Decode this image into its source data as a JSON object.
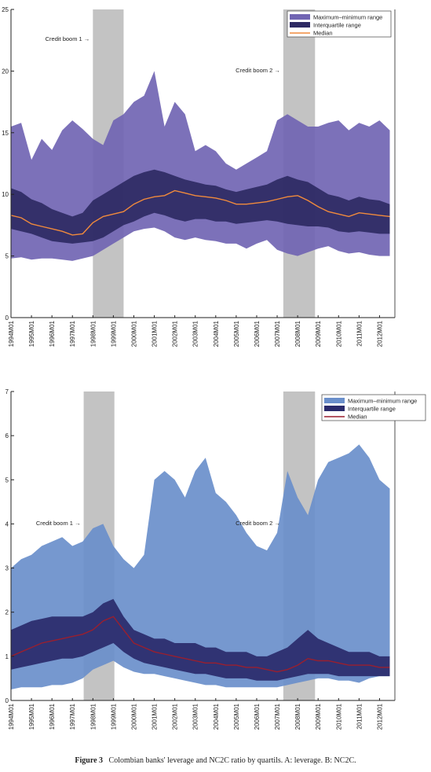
{
  "chart_data": [
    {
      "panel": "A",
      "type": "area",
      "ylim": [
        0,
        25
      ],
      "yticks": [
        0,
        5,
        10,
        15,
        20,
        25
      ],
      "xticks": [
        "1994M01",
        "1995M01",
        "1996M01",
        "1997M01",
        "1998M01",
        "1999M01",
        "2000M01",
        "2001M01",
        "2002M01",
        "2003M01",
        "2004M01",
        "2005M01",
        "2006M01",
        "2007M01",
        "2008M01",
        "2009M01",
        "2010M01",
        "2011M01",
        "2012M01"
      ],
      "shaded": [
        {
          "label": "Credit boom 1 →",
          "from": 1998.0,
          "to": 1999.5
        },
        {
          "label": "Credit boom 2 →",
          "from": 2007.3,
          "to": 2008.85
        }
      ],
      "colors": {
        "range": "#7165b3",
        "iqr": "#2e2a63",
        "median": "#f08a3c",
        "shade": "#c3c3c3"
      },
      "legend": [
        "Maximum–minimum range",
        "Interquartile range",
        "Median"
      ],
      "x": [
        1994.0,
        1994.5,
        1995.0,
        1995.5,
        1996.0,
        1996.5,
        1997.0,
        1997.5,
        1998.0,
        1998.5,
        1999.0,
        1999.5,
        2000.0,
        2000.5,
        2001.0,
        2001.5,
        2002.0,
        2002.5,
        2003.0,
        2003.5,
        2004.0,
        2004.5,
        2005.0,
        2005.5,
        2006.0,
        2006.5,
        2007.0,
        2007.5,
        2008.0,
        2008.5,
        2009.0,
        2009.5,
        2010.0,
        2010.5,
        2011.0,
        2011.5,
        2012.0,
        2012.5
      ],
      "series": [
        {
          "name": "Maximum–minimum range",
          "role": "max",
          "values": [
            15.5,
            15.8,
            12.8,
            14.5,
            13.6,
            15.2,
            16.0,
            15.3,
            14.5,
            14.0,
            16.0,
            16.5,
            17.5,
            18.0,
            20.0,
            15.5,
            17.5,
            16.5,
            13.5,
            14.0,
            13.5,
            12.5,
            12.0,
            12.5,
            13.0,
            13.5,
            16.0,
            16.5,
            16.0,
            15.5,
            15.5,
            15.8,
            16.0,
            15.2,
            15.8,
            15.5,
            16.0,
            15.2
          ]
        },
        {
          "name": "Maximum–minimum range",
          "role": "min",
          "values": [
            4.8,
            4.9,
            4.7,
            4.8,
            4.8,
            4.7,
            4.6,
            4.8,
            5.0,
            5.5,
            6.0,
            6.5,
            7.0,
            7.2,
            7.3,
            7.0,
            6.5,
            6.3,
            6.5,
            6.3,
            6.2,
            6.0,
            6.0,
            5.6,
            6.0,
            6.3,
            5.5,
            5.2,
            5.0,
            5.3,
            5.6,
            5.8,
            5.4,
            5.2,
            5.3,
            5.1,
            5.0,
            5.0
          ]
        },
        {
          "name": "Interquartile range",
          "role": "q3",
          "values": [
            10.5,
            10.2,
            9.6,
            9.3,
            8.8,
            8.5,
            8.2,
            8.5,
            9.5,
            10.0,
            10.5,
            11.0,
            11.5,
            11.8,
            12.0,
            11.8,
            11.5,
            11.2,
            11.0,
            10.8,
            10.7,
            10.4,
            10.2,
            10.4,
            10.6,
            10.8,
            11.2,
            11.5,
            11.2,
            11.0,
            10.5,
            10.0,
            9.8,
            9.5,
            9.8,
            9.6,
            9.5,
            9.2
          ]
        },
        {
          "name": "Interquartile range",
          "role": "q1",
          "values": [
            7.2,
            7.0,
            6.8,
            6.5,
            6.2,
            6.1,
            6.0,
            6.1,
            6.2,
            6.5,
            7.0,
            7.5,
            7.8,
            8.2,
            8.5,
            8.3,
            8.0,
            7.8,
            8.0,
            8.0,
            7.8,
            7.8,
            7.6,
            7.7,
            7.8,
            7.9,
            7.8,
            7.6,
            7.5,
            7.4,
            7.4,
            7.3,
            7.0,
            6.9,
            7.0,
            6.9,
            6.8,
            6.8
          ]
        },
        {
          "name": "Median",
          "role": "median",
          "values": [
            8.3,
            8.1,
            7.6,
            7.4,
            7.2,
            7.0,
            6.7,
            6.8,
            7.7,
            8.2,
            8.4,
            8.6,
            9.2,
            9.6,
            9.8,
            9.9,
            10.3,
            10.1,
            9.9,
            9.8,
            9.7,
            9.5,
            9.2,
            9.2,
            9.3,
            9.4,
            9.6,
            9.8,
            9.9,
            9.5,
            9.0,
            8.6,
            8.4,
            8.2,
            8.5,
            8.4,
            8.3,
            8.2
          ]
        }
      ]
    },
    {
      "panel": "B",
      "type": "area",
      "ylim": [
        0,
        7
      ],
      "yticks": [
        0,
        1,
        2,
        3,
        4,
        5,
        6,
        7
      ],
      "xticks": [
        "1994M01",
        "1995M01",
        "1996M01",
        "1997M01",
        "1998M01",
        "1999M01",
        "2000M01",
        "2001M01",
        "2002M01",
        "2003M01",
        "2004M01",
        "2005M01",
        "2006M01",
        "2007M01",
        "2008M01",
        "2009M01",
        "2010M01",
        "2011M01",
        "2012M01"
      ],
      "shaded": [
        {
          "label": "Credit boom 1 →",
          "from": 1997.55,
          "to": 1999.05
        },
        {
          "label": "Credit boom 2 →",
          "from": 2007.3,
          "to": 2008.85
        }
      ],
      "colors": {
        "range": "#6a8fcb",
        "iqr": "#2a2a6b",
        "median": "#9a1f2e",
        "shade": "#c3c3c3"
      },
      "legend": [
        "Maximum–minimum range",
        "Interquartile range",
        "Median"
      ],
      "x": [
        1994.0,
        1994.5,
        1995.0,
        1995.5,
        1996.0,
        1996.5,
        1997.0,
        1997.5,
        1998.0,
        1998.5,
        1999.0,
        1999.5,
        2000.0,
        2000.5,
        2001.0,
        2001.5,
        2002.0,
        2002.5,
        2003.0,
        2003.5,
        2004.0,
        2004.5,
        2005.0,
        2005.5,
        2006.0,
        2006.5,
        2007.0,
        2007.5,
        2008.0,
        2008.5,
        2009.0,
        2009.5,
        2010.0,
        2010.5,
        2011.0,
        2011.5,
        2012.0,
        2012.5
      ],
      "series": [
        {
          "name": "Maximum–minimum range",
          "role": "max",
          "values": [
            3.0,
            3.2,
            3.3,
            3.5,
            3.6,
            3.7,
            3.5,
            3.6,
            3.9,
            4.0,
            3.5,
            3.2,
            3.0,
            3.3,
            5.0,
            5.2,
            5.0,
            4.6,
            5.2,
            5.5,
            4.7,
            4.5,
            4.2,
            3.8,
            3.5,
            3.4,
            3.8,
            5.2,
            4.6,
            4.2,
            5.0,
            5.4,
            5.5,
            5.6,
            5.8,
            5.5,
            5.0,
            4.8
          ]
        },
        {
          "name": "Maximum–minimum range",
          "role": "min",
          "values": [
            0.25,
            0.3,
            0.3,
            0.3,
            0.35,
            0.35,
            0.4,
            0.5,
            0.7,
            0.8,
            0.9,
            0.75,
            0.65,
            0.6,
            0.6,
            0.55,
            0.5,
            0.45,
            0.4,
            0.35,
            0.35,
            0.3,
            0.3,
            0.3,
            0.3,
            0.3,
            0.3,
            0.35,
            0.4,
            0.45,
            0.5,
            0.5,
            0.45,
            0.45,
            0.4,
            0.5,
            0.55,
            0.55
          ]
        },
        {
          "name": "Interquartile range",
          "role": "q3",
          "values": [
            1.6,
            1.7,
            1.8,
            1.85,
            1.9,
            1.9,
            1.9,
            1.9,
            2.0,
            2.2,
            2.3,
            1.9,
            1.6,
            1.5,
            1.4,
            1.4,
            1.3,
            1.3,
            1.3,
            1.2,
            1.2,
            1.1,
            1.1,
            1.1,
            1.0,
            1.0,
            1.1,
            1.2,
            1.4,
            1.6,
            1.4,
            1.3,
            1.2,
            1.1,
            1.1,
            1.1,
            1.0,
            1.0
          ]
        },
        {
          "name": "Interquartile range",
          "role": "q1",
          "values": [
            0.7,
            0.75,
            0.8,
            0.85,
            0.9,
            0.95,
            0.95,
            1.0,
            1.1,
            1.2,
            1.3,
            1.1,
            0.95,
            0.85,
            0.8,
            0.75,
            0.7,
            0.65,
            0.6,
            0.6,
            0.55,
            0.5,
            0.5,
            0.5,
            0.45,
            0.45,
            0.45,
            0.5,
            0.55,
            0.6,
            0.6,
            0.6,
            0.55,
            0.55,
            0.55,
            0.55,
            0.55,
            0.55
          ]
        },
        {
          "name": "Median",
          "role": "median",
          "values": [
            1.0,
            1.1,
            1.2,
            1.3,
            1.35,
            1.4,
            1.45,
            1.5,
            1.6,
            1.8,
            1.9,
            1.6,
            1.3,
            1.2,
            1.1,
            1.05,
            1.0,
            0.95,
            0.9,
            0.85,
            0.85,
            0.8,
            0.8,
            0.75,
            0.75,
            0.7,
            0.65,
            0.7,
            0.8,
            0.95,
            0.9,
            0.9,
            0.85,
            0.8,
            0.8,
            0.8,
            0.75,
            0.75
          ]
        }
      ]
    }
  ],
  "caption": {
    "label": "Figure 3",
    "text": "Colombian banks' leverage and NC2C ratio by quartils. A: leverage. B: NC2C."
  }
}
